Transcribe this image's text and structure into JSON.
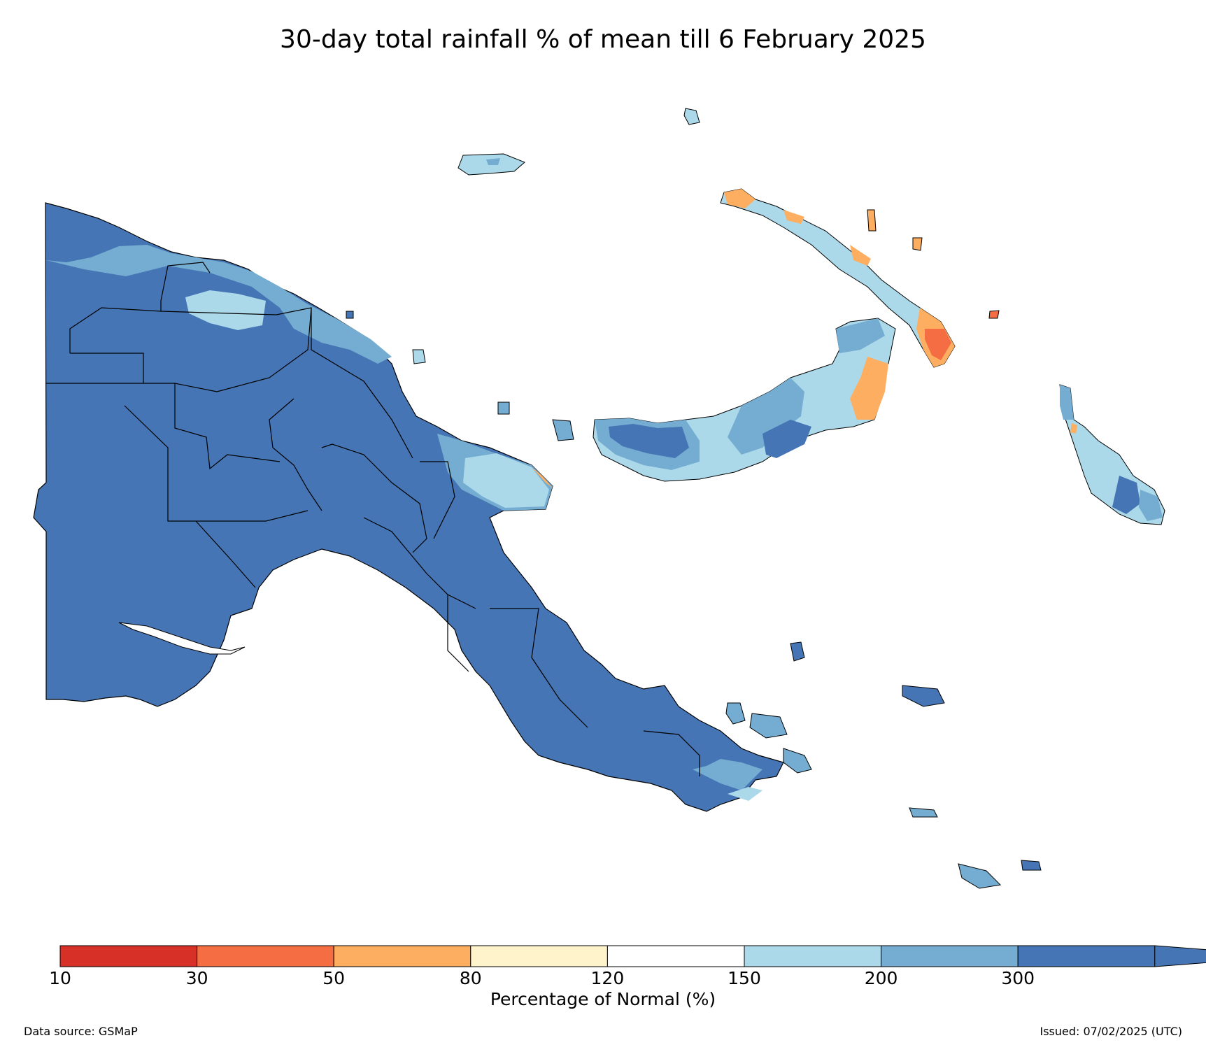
{
  "title": "30-day total rainfall % of mean till 6 February 2025",
  "colorbar": {
    "label": "Percentage of Normal (%)",
    "ticks": [
      "10",
      "30",
      "50",
      "80",
      "120",
      "150",
      "200",
      "300"
    ],
    "colors": [
      "#d73027",
      "#f46d43",
      "#fdae61",
      "#fff3cc",
      "#ffffff",
      "#abd9e9",
      "#74add1",
      "#4575b4"
    ],
    "extend_color": "#4575b4"
  },
  "map_colors": {
    "very_wet": "#4575b4",
    "wet": "#74add1",
    "moderate": "#abd9e9",
    "dry": "#fdae61",
    "very_dry": "#f46d43"
  },
  "footer": {
    "source": "Data source: GSMaP",
    "issued": "Issued: 07/02/2025 (UTC)"
  }
}
